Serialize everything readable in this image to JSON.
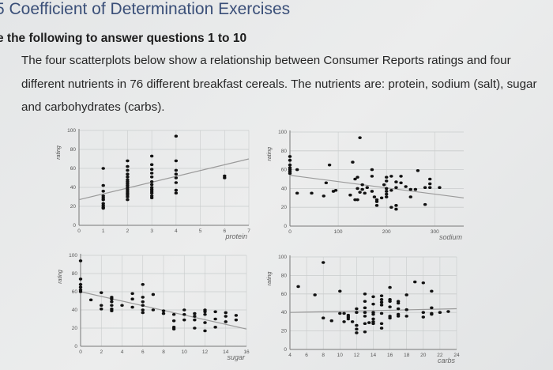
{
  "header": {
    "title": "5 Coefficient of Determination Exercises",
    "subheading": "e the following to answer questions 1 to 10",
    "paragraph": "The four scatterplots below show a relationship between Consumer Reports ratings and four different nutrients in 76 different breakfast cereals. The nutrients are: protein, sodium (salt), sugar and carbohydrates (carbs)."
  },
  "colors": {
    "title": "#3a4f78",
    "points": "#111111",
    "trend_line": "#9a9a9a",
    "grid": "#c9cccc"
  },
  "chart_data": [
    {
      "type": "scatter",
      "xlabel": "protein",
      "ylabel": "rating",
      "xlim": [
        0,
        7
      ],
      "ylim": [
        0,
        100
      ],
      "xticks": [
        0,
        1,
        2,
        3,
        4,
        5,
        6,
        7
      ],
      "yticks": [
        0,
        20,
        40,
        60,
        80,
        100
      ],
      "grid": true,
      "trend_line": [
        [
          0,
          27
        ],
        [
          7,
          70
        ]
      ],
      "points": [
        [
          1,
          60
        ],
        [
          1,
          42
        ],
        [
          1,
          36
        ],
        [
          1,
          31
        ],
        [
          1,
          29
        ],
        [
          1,
          27
        ],
        [
          1,
          23
        ],
        [
          1,
          21
        ],
        [
          1,
          19
        ],
        [
          1,
          18
        ],
        [
          2,
          68
        ],
        [
          2,
          62
        ],
        [
          2,
          58
        ],
        [
          2,
          54
        ],
        [
          2,
          51
        ],
        [
          2,
          48
        ],
        [
          2,
          46
        ],
        [
          2,
          44
        ],
        [
          2,
          42
        ],
        [
          2,
          40
        ],
        [
          2,
          38
        ],
        [
          2,
          36
        ],
        [
          2,
          34
        ],
        [
          2,
          32
        ],
        [
          2,
          30
        ],
        [
          2,
          27
        ],
        [
          3,
          73
        ],
        [
          3,
          64
        ],
        [
          3,
          59
        ],
        [
          3,
          55
        ],
        [
          3,
          51
        ],
        [
          3,
          46
        ],
        [
          3,
          43
        ],
        [
          3,
          40
        ],
        [
          3,
          38
        ],
        [
          3,
          36
        ],
        [
          3,
          34
        ],
        [
          3,
          31
        ],
        [
          3,
          29
        ],
        [
          4,
          94
        ],
        [
          4,
          68
        ],
        [
          4,
          58
        ],
        [
          4,
          54
        ],
        [
          4,
          50
        ],
        [
          4,
          45
        ],
        [
          4,
          37
        ],
        [
          4,
          34
        ],
        [
          6,
          52
        ],
        [
          6,
          50
        ]
      ]
    },
    {
      "type": "scatter",
      "xlabel": "sodium",
      "ylabel": "rating",
      "xlim": [
        0,
        360
      ],
      "ylim": [
        0,
        100
      ],
      "xticks": [
        0,
        100,
        200,
        300
      ],
      "yticks": [
        0,
        20,
        40,
        60,
        80,
        100
      ],
      "grid": true,
      "trend_line": [
        [
          0,
          54
        ],
        [
          360,
          30
        ]
      ],
      "points": [
        [
          0,
          74
        ],
        [
          0,
          70
        ],
        [
          0,
          65
        ],
        [
          0,
          62
        ],
        [
          0,
          60
        ],
        [
          0,
          58
        ],
        [
          0,
          56
        ],
        [
          15,
          60
        ],
        [
          15,
          35
        ],
        [
          45,
          35
        ],
        [
          70,
          32
        ],
        [
          75,
          46
        ],
        [
          82,
          65
        ],
        [
          90,
          37
        ],
        [
          95,
          38
        ],
        [
          125,
          33
        ],
        [
          130,
          68
        ],
        [
          135,
          50
        ],
        [
          135,
          28
        ],
        [
          140,
          52
        ],
        [
          140,
          40
        ],
        [
          140,
          28
        ],
        [
          145,
          94
        ],
        [
          145,
          36
        ],
        [
          150,
          44
        ],
        [
          150,
          39
        ],
        [
          155,
          35
        ],
        [
          160,
          41
        ],
        [
          170,
          60
        ],
        [
          170,
          53
        ],
        [
          170,
          37
        ],
        [
          175,
          31
        ],
        [
          180,
          28
        ],
        [
          180,
          26
        ],
        [
          180,
          22
        ],
        [
          190,
          30
        ],
        [
          195,
          44
        ],
        [
          200,
          52
        ],
        [
          200,
          48
        ],
        [
          200,
          40
        ],
        [
          200,
          37
        ],
        [
          200,
          34
        ],
        [
          200,
          31
        ],
        [
          210,
          53
        ],
        [
          210,
          38
        ],
        [
          210,
          20
        ],
        [
          220,
          47
        ],
        [
          220,
          41
        ],
        [
          220,
          22
        ],
        [
          220,
          18
        ],
        [
          230,
          53
        ],
        [
          230,
          46
        ],
        [
          240,
          42
        ],
        [
          250,
          39
        ],
        [
          250,
          31
        ],
        [
          260,
          39
        ],
        [
          265,
          59
        ],
        [
          280,
          41
        ],
        [
          280,
          23
        ],
        [
          290,
          50
        ],
        [
          290,
          45
        ],
        [
          290,
          41
        ],
        [
          310,
          41
        ]
      ]
    },
    {
      "type": "scatter",
      "xlabel": "sugar",
      "ylabel": "rating",
      "xlim": [
        0,
        16
      ],
      "ylim": [
        0,
        100
      ],
      "xticks": [
        0,
        2,
        4,
        6,
        8,
        10,
        12,
        14,
        16
      ],
      "yticks": [
        0,
        20,
        40,
        60,
        80,
        100
      ],
      "grid": true,
      "trend_line": [
        [
          0,
          60
        ],
        [
          16,
          19
        ]
      ],
      "points": [
        [
          0,
          94
        ],
        [
          0,
          74
        ],
        [
          0,
          68
        ],
        [
          0,
          65
        ],
        [
          0,
          62
        ],
        [
          0,
          60
        ],
        [
          1,
          51
        ],
        [
          2,
          59
        ],
        [
          2,
          45
        ],
        [
          2,
          41
        ],
        [
          3,
          54
        ],
        [
          3,
          52
        ],
        [
          3,
          49
        ],
        [
          3,
          45
        ],
        [
          3,
          41
        ],
        [
          3,
          39
        ],
        [
          4,
          45
        ],
        [
          5,
          58
        ],
        [
          5,
          52
        ],
        [
          5,
          43
        ],
        [
          6,
          68
        ],
        [
          6,
          54
        ],
        [
          6,
          49
        ],
        [
          6,
          45
        ],
        [
          6,
          40
        ],
        [
          6,
          37
        ],
        [
          7,
          57
        ],
        [
          7,
          40
        ],
        [
          8,
          39
        ],
        [
          8,
          36
        ],
        [
          9,
          35
        ],
        [
          9,
          28
        ],
        [
          9,
          21
        ],
        [
          9,
          19
        ],
        [
          10,
          40
        ],
        [
          10,
          35
        ],
        [
          10,
          29
        ],
        [
          11,
          36
        ],
        [
          11,
          33
        ],
        [
          11,
          29
        ],
        [
          11,
          20
        ],
        [
          12,
          40
        ],
        [
          12,
          38
        ],
        [
          12,
          35
        ],
        [
          12,
          26
        ],
        [
          12,
          17
        ],
        [
          13,
          38
        ],
        [
          13,
          30
        ],
        [
          13,
          21
        ],
        [
          14,
          37
        ],
        [
          14,
          33
        ],
        [
          14,
          27
        ],
        [
          15,
          34
        ],
        [
          15,
          29
        ]
      ]
    },
    {
      "type": "scatter",
      "xlabel": "carbs",
      "ylabel": "rating",
      "xlim": [
        4,
        24
      ],
      "ylim": [
        0,
        100
      ],
      "xticks": [
        4,
        6,
        8,
        10,
        12,
        14,
        16,
        18,
        20,
        22,
        24
      ],
      "yticks": [
        0,
        20,
        40,
        60,
        80,
        100
      ],
      "grid": true,
      "trend_line": [
        [
          4,
          40
        ],
        [
          24,
          44
        ]
      ],
      "points": [
        [
          5,
          68
        ],
        [
          7,
          59
        ],
        [
          8,
          94
        ],
        [
          8,
          34
        ],
        [
          9,
          31
        ],
        [
          10,
          63
        ],
        [
          10,
          39
        ],
        [
          10.5,
          39
        ],
        [
          10.5,
          30
        ],
        [
          11,
          37
        ],
        [
          11,
          35
        ],
        [
          11,
          33
        ],
        [
          11.5,
          30
        ],
        [
          12,
          44
        ],
        [
          12,
          40
        ],
        [
          12,
          26
        ],
        [
          12,
          22
        ],
        [
          12,
          18
        ],
        [
          13,
          60
        ],
        [
          13,
          52
        ],
        [
          13,
          45
        ],
        [
          13,
          40
        ],
        [
          13,
          36
        ],
        [
          13,
          28
        ],
        [
          13,
          19
        ],
        [
          13.5,
          29
        ],
        [
          14,
          57
        ],
        [
          14,
          49
        ],
        [
          14,
          40
        ],
        [
          14,
          38
        ],
        [
          14,
          33
        ],
        [
          14,
          30
        ],
        [
          14,
          28
        ],
        [
          15,
          58
        ],
        [
          15,
          54
        ],
        [
          15,
          51
        ],
        [
          15,
          48
        ],
        [
          15,
          39
        ],
        [
          15,
          28
        ],
        [
          15,
          23
        ],
        [
          16,
          67
        ],
        [
          16,
          54
        ],
        [
          16,
          52
        ],
        [
          16,
          46
        ],
        [
          16,
          36
        ],
        [
          16,
          34
        ],
        [
          17,
          52
        ],
        [
          17,
          50
        ],
        [
          17,
          44
        ],
        [
          17,
          38
        ],
        [
          17,
          36
        ],
        [
          18,
          59
        ],
        [
          18,
          43
        ],
        [
          18,
          36
        ],
        [
          19,
          73
        ],
        [
          20,
          72
        ],
        [
          20,
          40
        ],
        [
          20,
          35
        ],
        [
          21,
          63
        ],
        [
          21,
          45
        ],
        [
          21,
          39
        ],
        [
          21,
          38
        ],
        [
          22,
          40
        ],
        [
          23,
          41
        ]
      ]
    }
  ]
}
